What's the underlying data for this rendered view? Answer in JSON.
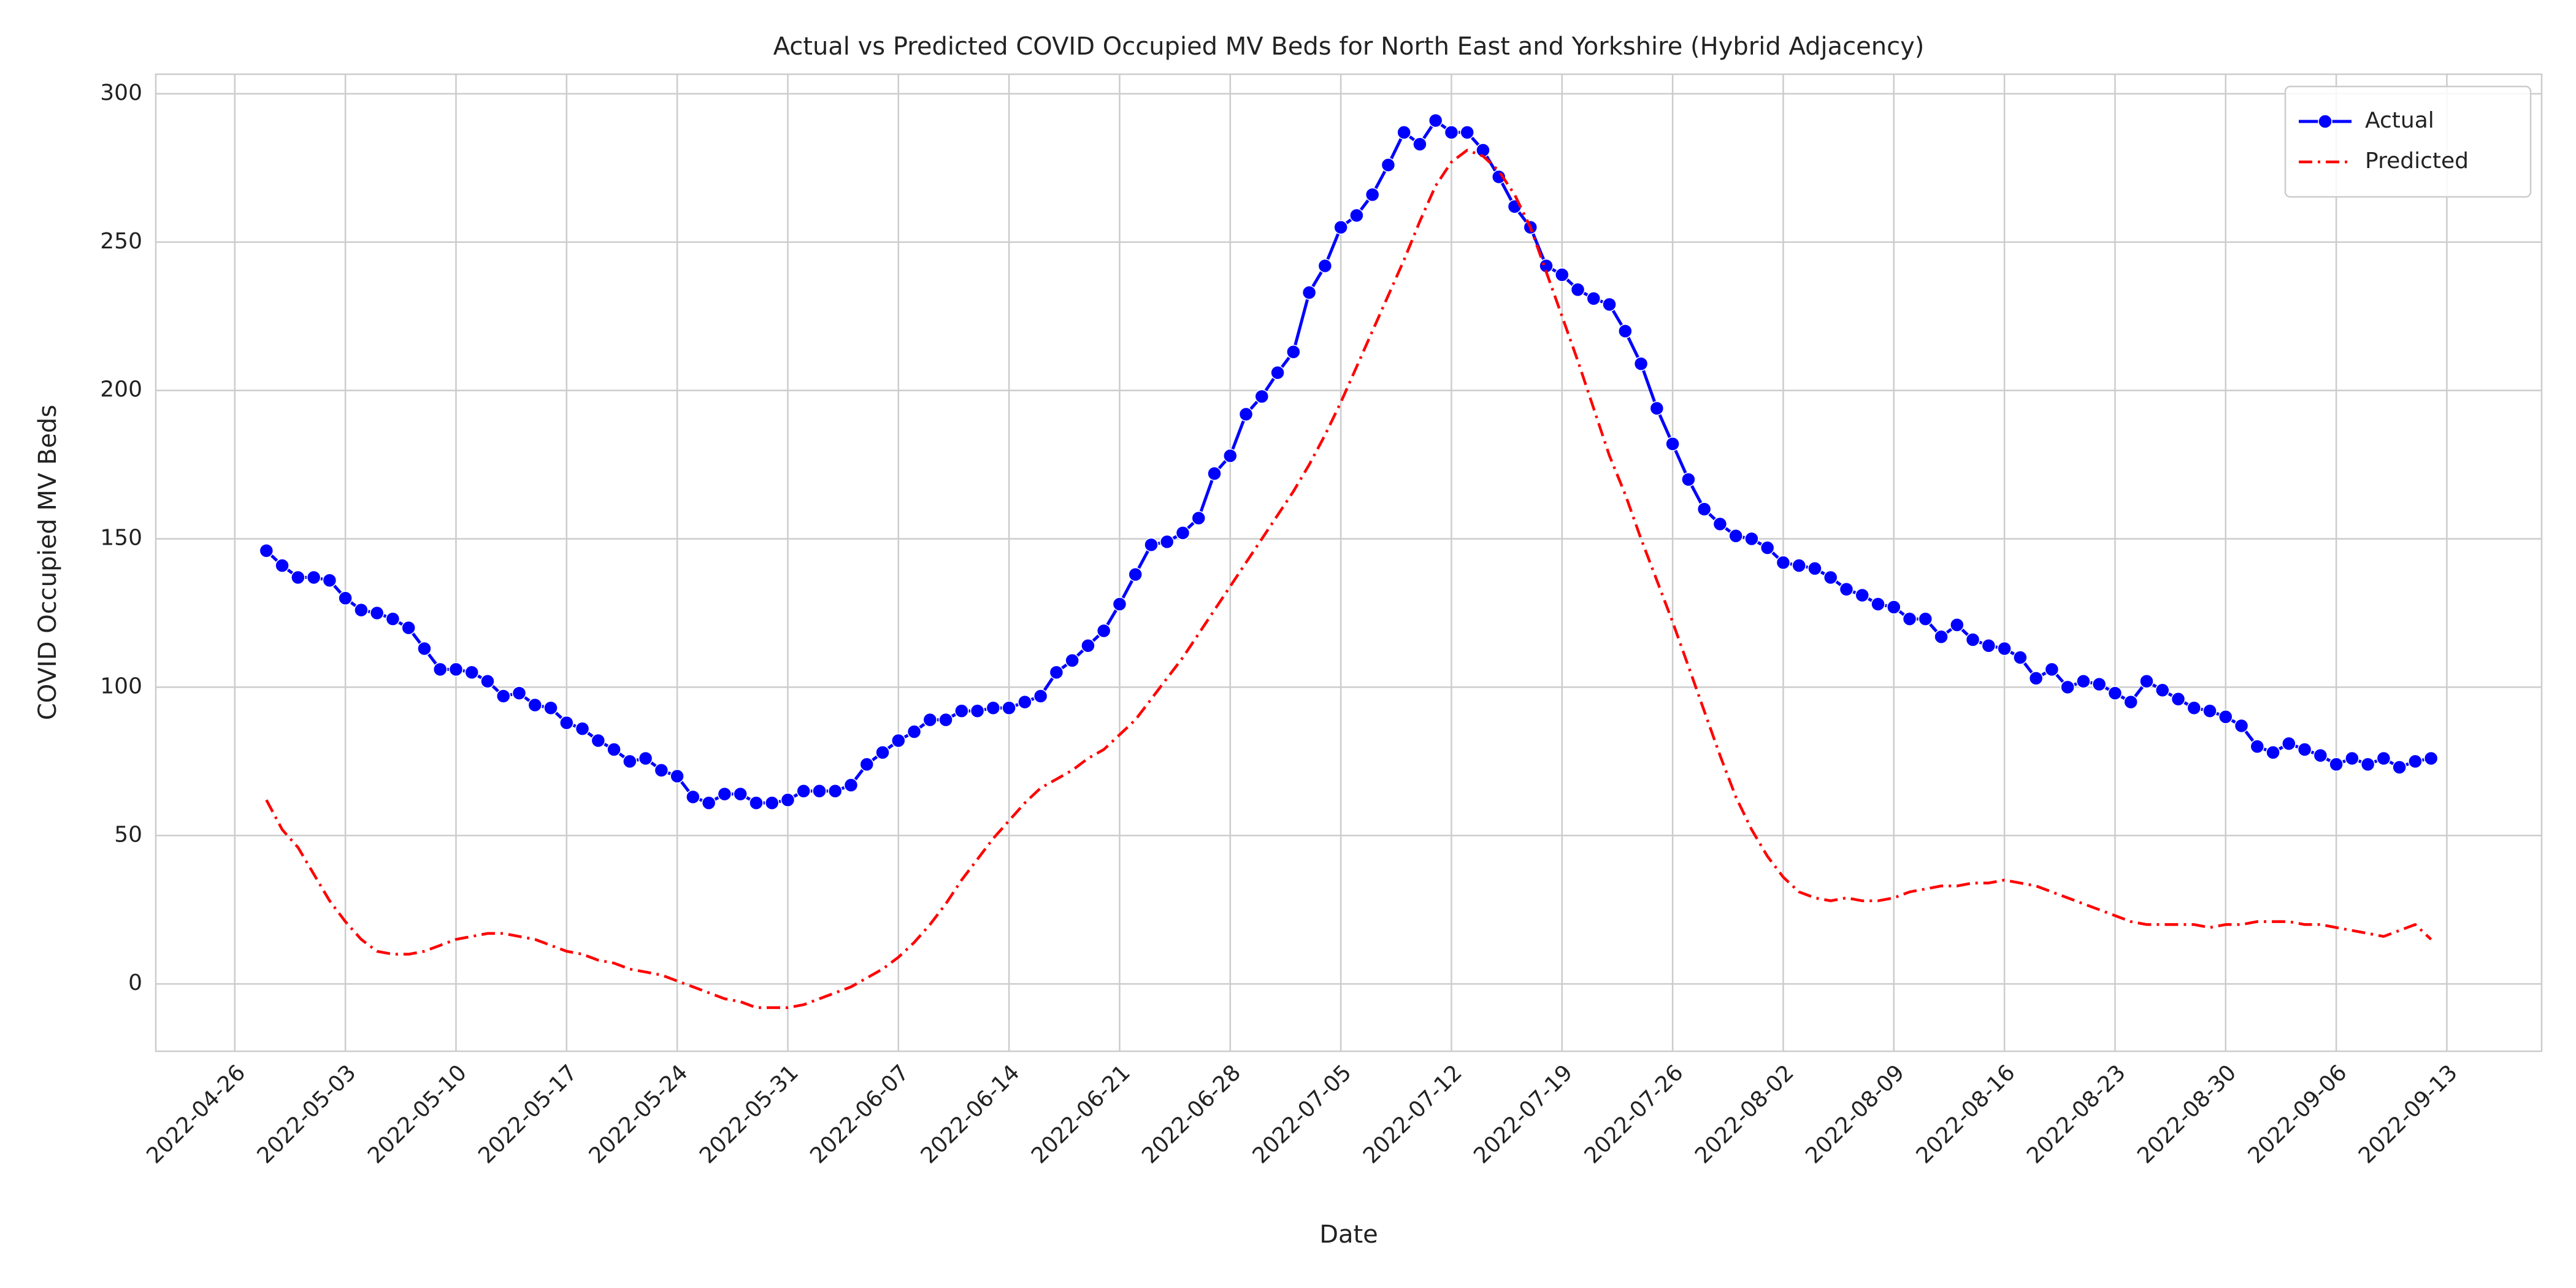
{
  "chart_data": {
    "type": "line",
    "title": "Actual vs Predicted COVID Occupied MV Beds for North East and Yorkshire (Hybrid Adjacency)",
    "xlabel": "Date",
    "ylabel": "COVID Occupied MV Beds",
    "x": [
      "2022-04-28",
      "2022-04-29",
      "2022-04-30",
      "2022-05-01",
      "2022-05-02",
      "2022-05-03",
      "2022-05-04",
      "2022-05-05",
      "2022-05-06",
      "2022-05-07",
      "2022-05-08",
      "2022-05-09",
      "2022-05-10",
      "2022-05-11",
      "2022-05-12",
      "2022-05-13",
      "2022-05-14",
      "2022-05-15",
      "2022-05-16",
      "2022-05-17",
      "2022-05-18",
      "2022-05-19",
      "2022-05-20",
      "2022-05-21",
      "2022-05-22",
      "2022-05-23",
      "2022-05-24",
      "2022-05-25",
      "2022-05-26",
      "2022-05-27",
      "2022-05-28",
      "2022-05-29",
      "2022-05-30",
      "2022-05-31",
      "2022-06-01",
      "2022-06-02",
      "2022-06-03",
      "2022-06-04",
      "2022-06-05",
      "2022-06-06",
      "2022-06-07",
      "2022-06-08",
      "2022-06-09",
      "2022-06-10",
      "2022-06-11",
      "2022-06-12",
      "2022-06-13",
      "2022-06-14",
      "2022-06-15",
      "2022-06-16",
      "2022-06-17",
      "2022-06-18",
      "2022-06-19",
      "2022-06-20",
      "2022-06-21",
      "2022-06-22",
      "2022-06-23",
      "2022-06-24",
      "2022-06-25",
      "2022-06-26",
      "2022-06-27",
      "2022-06-28",
      "2022-06-29",
      "2022-06-30",
      "2022-07-01",
      "2022-07-02",
      "2022-07-03",
      "2022-07-04",
      "2022-07-05",
      "2022-07-06",
      "2022-07-07",
      "2022-07-08",
      "2022-07-09",
      "2022-07-10",
      "2022-07-11",
      "2022-07-12",
      "2022-07-13",
      "2022-07-14",
      "2022-07-15",
      "2022-07-16",
      "2022-07-17",
      "2022-07-18",
      "2022-07-19",
      "2022-07-20",
      "2022-07-21",
      "2022-07-22",
      "2022-07-23",
      "2022-07-24",
      "2022-07-25",
      "2022-07-26",
      "2022-07-27",
      "2022-07-28",
      "2022-07-29",
      "2022-07-30",
      "2022-07-31",
      "2022-08-01",
      "2022-08-02",
      "2022-08-03",
      "2022-08-04",
      "2022-08-05",
      "2022-08-06",
      "2022-08-07",
      "2022-08-08",
      "2022-08-09",
      "2022-08-10",
      "2022-08-11",
      "2022-08-12",
      "2022-08-13",
      "2022-08-14",
      "2022-08-15",
      "2022-08-16",
      "2022-08-17",
      "2022-08-18",
      "2022-08-19",
      "2022-08-20",
      "2022-08-21",
      "2022-08-22",
      "2022-08-23",
      "2022-08-24",
      "2022-08-25",
      "2022-08-26",
      "2022-08-27",
      "2022-08-28",
      "2022-08-29",
      "2022-08-30",
      "2022-08-31",
      "2022-09-01",
      "2022-09-02",
      "2022-09-03",
      "2022-09-04",
      "2022-09-05",
      "2022-09-06",
      "2022-09-07",
      "2022-09-08",
      "2022-09-09",
      "2022-09-10",
      "2022-09-11",
      "2022-09-12"
    ],
    "series": [
      {
        "name": "Actual",
        "color": "#0000ff",
        "linestyle": "solid",
        "marker": "o",
        "values": [
          146,
          141,
          137,
          137,
          136,
          130,
          126,
          125,
          123,
          120,
          113,
          106,
          106,
          105,
          102,
          97,
          98,
          94,
          93,
          88,
          86,
          82,
          79,
          75,
          76,
          72,
          70,
          63,
          61,
          64,
          64,
          61,
          61,
          62,
          65,
          65,
          65,
          67,
          74,
          78,
          82,
          85,
          89,
          89,
          92,
          92,
          93,
          93,
          95,
          97,
          105,
          109,
          114,
          119,
          128,
          138,
          148,
          149,
          152,
          157,
          172,
          178,
          192,
          198,
          206,
          213,
          233,
          242,
          255,
          259,
          266,
          276,
          287,
          283,
          291,
          287,
          287,
          281,
          272,
          262,
          255,
          242,
          239,
          234,
          231,
          229,
          220,
          209,
          194,
          182,
          170,
          160,
          155,
          151,
          150,
          147,
          142,
          141,
          140,
          137,
          133,
          131,
          128,
          127,
          123,
          123,
          117,
          121,
          116,
          114,
          113,
          110,
          103,
          106,
          100,
          102,
          101,
          98,
          95,
          102,
          99,
          96,
          93,
          92,
          90,
          87,
          80,
          78,
          81,
          79,
          77,
          74,
          76,
          74,
          76,
          73,
          75,
          76
        ]
      },
      {
        "name": "Predicted",
        "color": "#ff0000",
        "linestyle": "dashdot",
        "marker": "none",
        "values": [
          62,
          52,
          46,
          37,
          28,
          21,
          15,
          11,
          10,
          10,
          11,
          13,
          15,
          16,
          17,
          17,
          16,
          15,
          13,
          11,
          10,
          8,
          7,
          5,
          4,
          3,
          1,
          -1,
          -3,
          -5,
          -6,
          -8,
          -8,
          -8,
          -7,
          -5,
          -3,
          -1,
          2,
          5,
          9,
          14,
          20,
          27,
          35,
          42,
          49,
          55,
          61,
          66,
          69,
          72,
          76,
          79,
          84,
          89,
          96,
          103,
          110,
          118,
          126,
          134,
          142,
          150,
          158,
          166,
          175,
          185,
          196,
          208,
          220,
          232,
          244,
          257,
          269,
          277,
          281,
          279,
          274,
          266,
          255,
          240,
          225,
          210,
          194,
          178,
          165,
          150,
          136,
          122,
          107,
          92,
          77,
          63,
          52,
          43,
          36,
          31,
          29,
          28,
          29,
          28,
          28,
          29,
          31,
          32,
          33,
          33,
          34,
          34,
          35,
          34,
          33,
          31,
          29,
          27,
          25,
          23,
          21,
          20,
          20,
          20,
          20,
          19,
          20,
          20,
          21,
          21,
          21,
          20,
          20,
          19,
          18,
          17,
          16,
          18,
          20,
          15
        ]
      }
    ],
    "xlim": [
      "2022-04-21",
      "2022-09-19"
    ],
    "xticks": [
      "2022-04-26",
      "2022-05-03",
      "2022-05-10",
      "2022-05-17",
      "2022-05-24",
      "2022-05-31",
      "2022-06-07",
      "2022-06-14",
      "2022-06-21",
      "2022-06-28",
      "2022-07-05",
      "2022-07-12",
      "2022-07-19",
      "2022-07-26",
      "2022-08-02",
      "2022-08-09",
      "2022-08-16",
      "2022-08-23",
      "2022-08-30",
      "2022-09-06",
      "2022-09-13"
    ],
    "ylim": [
      -22.7,
      306.6
    ],
    "yticks": [
      0,
      50,
      100,
      150,
      200,
      250,
      300
    ],
    "grid": true,
    "legend": "upper right"
  }
}
